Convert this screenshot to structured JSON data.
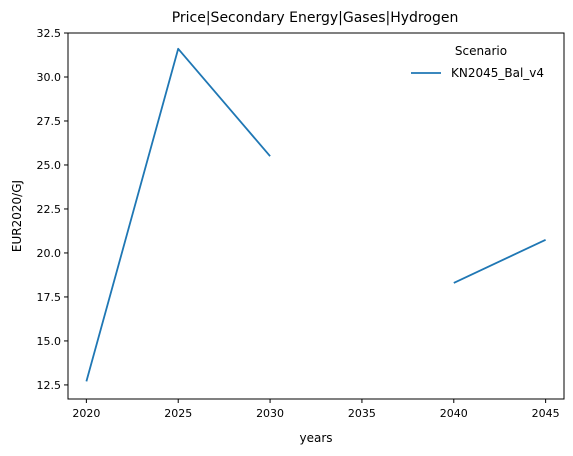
{
  "chart_data": {
    "type": "line",
    "title": "Price|Secondary Energy|Gases|Hydrogen",
    "xlabel": "years",
    "ylabel": "EUR2020/GJ",
    "xlim": [
      2019,
      2046
    ],
    "ylim": [
      11.7,
      32.5
    ],
    "xticks": [
      2020,
      2025,
      2030,
      2035,
      2040,
      2045
    ],
    "yticks": [
      12.5,
      15.0,
      17.5,
      20.0,
      22.5,
      25.0,
      27.5,
      30.0,
      32.5
    ],
    "legend": {
      "title": "Scenario",
      "placement": "top-right"
    },
    "grid": false,
    "series": [
      {
        "name": "KN2045_Bal_v4",
        "color": "#1f77b4",
        "x": [
          2020,
          2025,
          2030,
          2035,
          2040,
          2045
        ],
        "y": [
          12.7,
          31.6,
          25.5,
          null,
          18.3,
          20.75
        ]
      }
    ]
  }
}
